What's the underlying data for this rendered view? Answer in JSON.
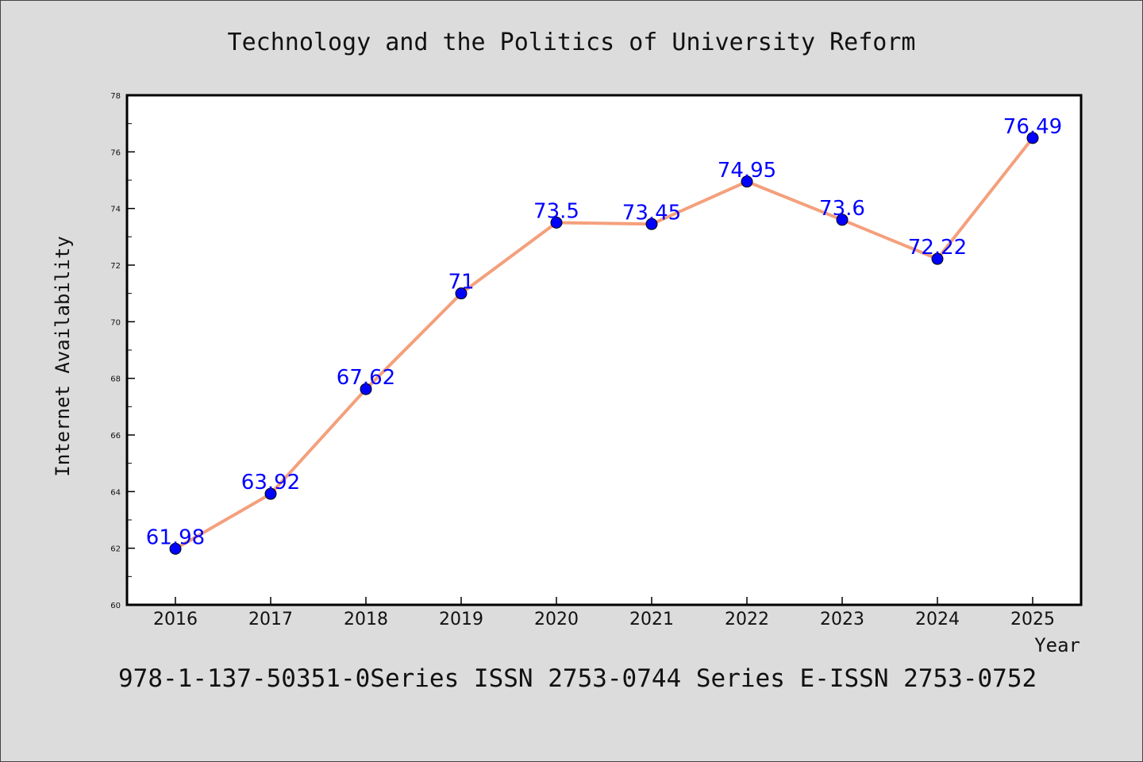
{
  "chart_data": {
    "type": "line",
    "title": "Technology and the Politics of University Reform",
    "xlabel": "Year",
    "ylabel": "Internet Availability",
    "categories": [
      "2016",
      "2017",
      "2018",
      "2019",
      "2020",
      "2021",
      "2022",
      "2023",
      "2024",
      "2025"
    ],
    "series": [
      {
        "values": [
          61.98,
          63.92,
          67.62,
          71,
          73.5,
          73.45,
          74.95,
          73.6,
          72.22,
          76.49
        ],
        "labels": [
          "61.98",
          "63.92",
          "67.62",
          "71",
          "73.5",
          "73.45",
          "74.95",
          "73.6",
          "72.22",
          "76.49"
        ]
      }
    ],
    "ylim": [
      60,
      78
    ],
    "yticks": [
      "60",
      "62",
      "64",
      "66",
      "68",
      "70",
      "72",
      "74",
      "76",
      "78"
    ],
    "grid": false,
    "colors": {
      "line": "#f4a07c",
      "marker": "#0000ff",
      "label": "#0000ff",
      "background": "#dcdcdc",
      "plot_bg": "#ffffff"
    }
  },
  "footer": "978-1-137-50351-0Series ISSN 2753-0744 Series E-ISSN 2753-0752"
}
